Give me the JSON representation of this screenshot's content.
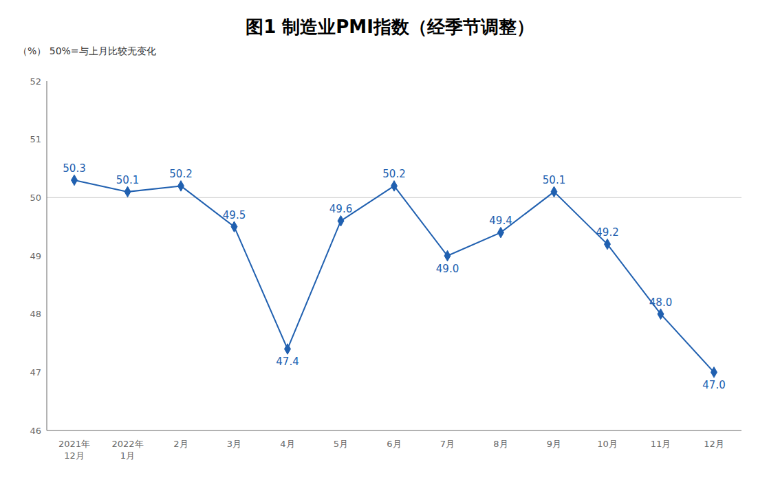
{
  "chart_data": {
    "type": "line",
    "title": "图1  制造业PMI指数（经季节调整）",
    "ylabel": "（%）  50%=与上月比较无变化",
    "categories": [
      "2021年\n12月",
      "2022年\n1月",
      "2月",
      "3月",
      "4月",
      "5月",
      "6月",
      "7月",
      "8月",
      "9月",
      "10月",
      "11月",
      "12月"
    ],
    "values": [
      50.3,
      50.1,
      50.2,
      49.5,
      47.4,
      49.6,
      50.2,
      49.0,
      49.4,
      50.1,
      49.2,
      48.0,
      47.0
    ],
    "value_labels": [
      "50.3",
      "50.1",
      "50.2",
      "49.5",
      "47.4",
      "49.6",
      "50.2",
      "49.0",
      "49.4",
      "50.1",
      "49.2",
      "48.0",
      "47.0"
    ],
    "color": "#2060b0",
    "marker": "diamond",
    "data_labels": true,
    "ylim": [
      46,
      52
    ],
    "yticks": [
      46,
      47,
      48,
      49,
      50,
      51,
      52
    ],
    "reference_line": 50,
    "grid": false
  }
}
